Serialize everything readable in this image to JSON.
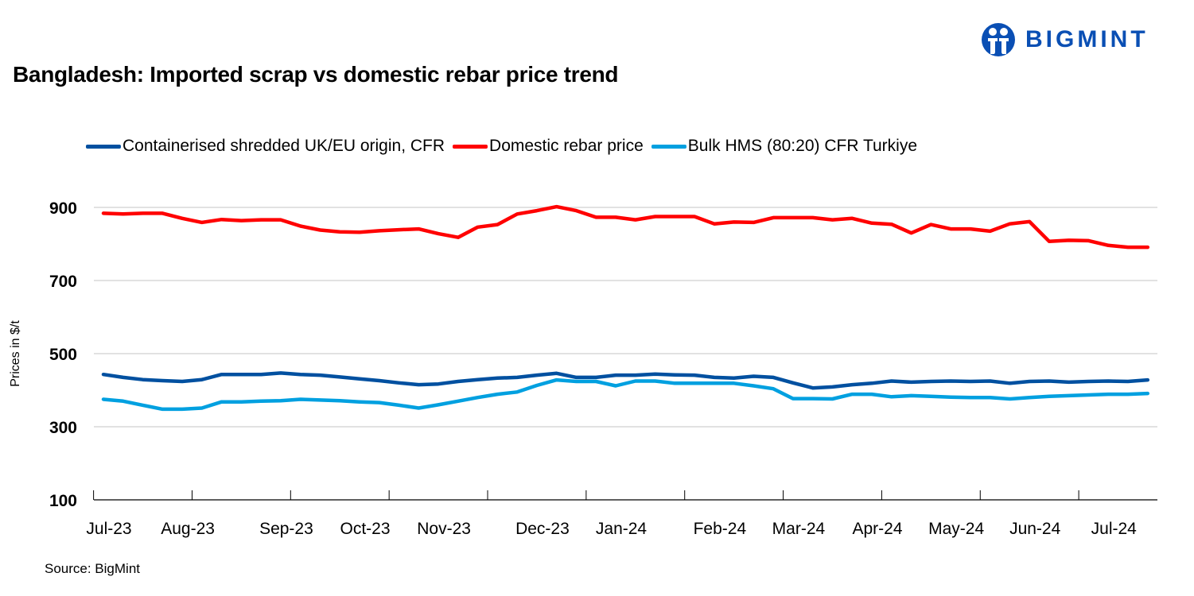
{
  "title": "Bangladesh: Imported scrap vs domestic rebar price trend",
  "logo": {
    "text": "BIGMINT",
    "color": "#0a4fb4"
  },
  "source": "Source: BigMint",
  "chart_data": {
    "type": "line",
    "title": "Bangladesh: Imported scrap vs domestic rebar price trend",
    "ylabel": "Prices in $/t",
    "xlabel": "",
    "ylim": [
      100,
      960
    ],
    "yticks": [
      100,
      300,
      500,
      700,
      900
    ],
    "grid": true,
    "legend_position": "top",
    "x_tick_labels": [
      {
        "label": "Jul-23",
        "index": 0
      },
      {
        "label": "Aug-23",
        "index": 4
      },
      {
        "label": "Sep-23",
        "index": 9
      },
      {
        "label": "Oct-23",
        "index": 13
      },
      {
        "label": "Nov-23",
        "index": 17
      },
      {
        "label": "Dec-23",
        "index": 22
      },
      {
        "label": "Jan-24",
        "index": 26
      },
      {
        "label": "Feb-24",
        "index": 31
      },
      {
        "label": "Mar-24",
        "index": 35
      },
      {
        "label": "Apr-24",
        "index": 39
      },
      {
        "label": "May-24",
        "index": 43
      },
      {
        "label": "Jun-24",
        "index": 47
      },
      {
        "label": "Jul-24",
        "index": 51
      }
    ],
    "series": [
      {
        "name": "Containerised shredded UK/EU origin, CFR",
        "color": "#0050a0",
        "values": [
          443,
          435,
          429,
          426,
          424,
          429,
          443,
          443,
          443,
          447,
          443,
          441,
          436,
          431,
          426,
          420,
          415,
          417,
          424,
          429,
          433,
          435,
          441,
          446,
          435,
          435,
          441,
          441,
          444,
          442,
          441,
          435,
          433,
          438,
          435,
          420,
          406,
          409,
          415,
          419,
          425,
          422,
          424,
          425,
          424,
          425,
          419,
          424,
          425,
          422,
          424,
          425,
          424,
          428
        ]
      },
      {
        "name": "Domestic rebar price",
        "color": "#ff0000",
        "values": [
          884,
          882,
          884,
          884,
          870,
          859,
          867,
          864,
          866,
          866,
          849,
          838,
          833,
          832,
          836,
          839,
          841,
          828,
          818,
          846,
          853,
          882,
          891,
          902,
          891,
          873,
          873,
          866,
          875,
          875,
          875,
          855,
          860,
          859,
          872,
          872,
          872,
          866,
          870,
          857,
          854,
          830,
          853,
          841,
          841,
          835,
          855,
          861,
          807,
          810,
          809,
          796,
          791,
          791
        ]
      },
      {
        "name": "Bulk HMS (80:20) CFR Turkiye",
        "color": "#00a0e0",
        "values": [
          375,
          370,
          359,
          348,
          348,
          351,
          368,
          368,
          370,
          371,
          375,
          373,
          371,
          368,
          366,
          359,
          351,
          360,
          370,
          380,
          389,
          395,
          413,
          428,
          424,
          424,
          412,
          425,
          425,
          419,
          419,
          419,
          419,
          412,
          404,
          377,
          377,
          376,
          389,
          389,
          382,
          385,
          383,
          381,
          380,
          380,
          376,
          380,
          383,
          385,
          387,
          389,
          389,
          391
        ]
      }
    ]
  }
}
